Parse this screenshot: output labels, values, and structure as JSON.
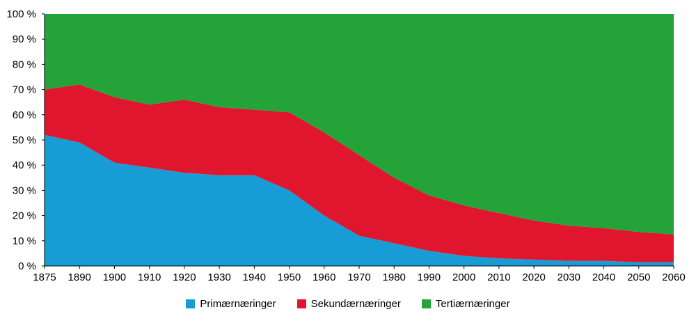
{
  "chart_data": {
    "type": "area",
    "stacked": true,
    "stacked_percent": true,
    "title": "",
    "xlabel": "",
    "ylabel": "",
    "unit": "%",
    "grid": false,
    "legend_position": "bottom",
    "ylim": [
      0,
      100
    ],
    "y_tick_labels": [
      "0 %",
      "10 %",
      "20 %",
      "30 %",
      "40 %",
      "50 %",
      "60 %",
      "70 %",
      "80 %",
      "90 %",
      "100 %"
    ],
    "categories": [
      "1875",
      "1890",
      "1900",
      "1910",
      "1920",
      "1930",
      "1940",
      "1950",
      "1960",
      "1970",
      "1980",
      "1990",
      "2000",
      "2010",
      "2020",
      "2030",
      "2040",
      "2050",
      "2060"
    ],
    "series": [
      {
        "name": "Primærnæringer",
        "slug": "primaernaeringer",
        "color": "#189cd5",
        "values": [
          52,
          49,
          41,
          39,
          37,
          36,
          36,
          30,
          20,
          12,
          9,
          6,
          4,
          3,
          2.5,
          2,
          2,
          1.5,
          1.5
        ]
      },
      {
        "name": "Sekundærnæringer",
        "slug": "sekundaernaeringer",
        "color": "#e0162e",
        "values": [
          18,
          23,
          26,
          25,
          29,
          27,
          26,
          31,
          33,
          32,
          26,
          22,
          20,
          18,
          15.5,
          14,
          13,
          12,
          11
        ]
      },
      {
        "name": "Tertiærnæringer",
        "slug": "tertiaernaeringer",
        "color": "#23a338",
        "values": [
          30,
          28,
          33,
          36,
          34,
          37,
          38,
          39,
          47,
          56,
          65,
          72,
          76,
          79,
          82,
          84,
          85,
          86.5,
          87.5
        ]
      }
    ],
    "axis_color": "#000000",
    "background_color": "#ffffff"
  }
}
